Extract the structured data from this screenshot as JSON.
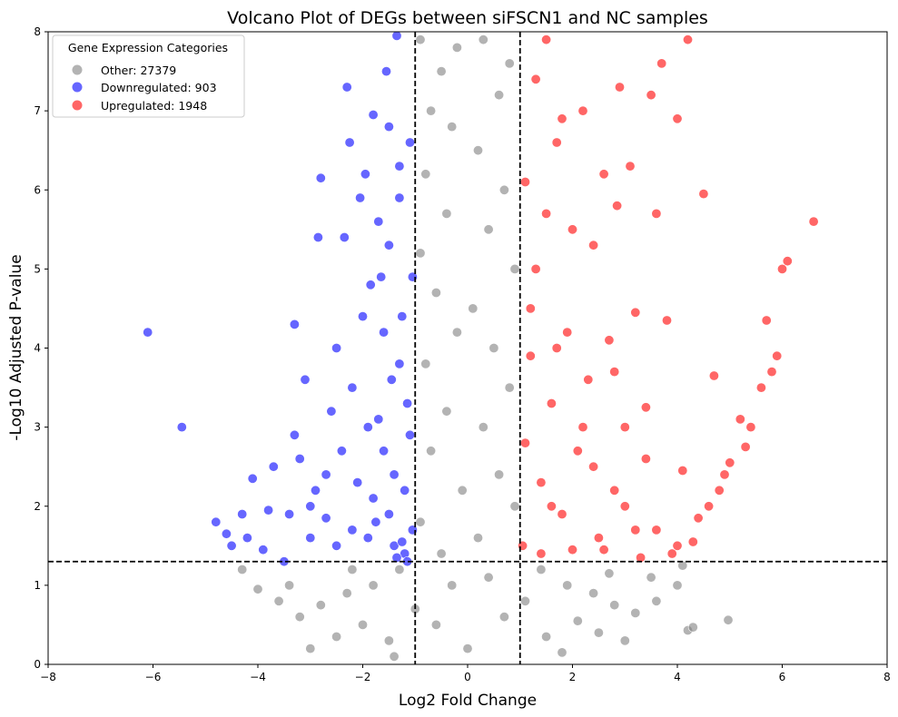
{
  "chart_data": {
    "type": "scatter",
    "title": "Volcano Plot of DEGs between siFSCN1 and NC samples",
    "xlabel": "Log2 Fold Change",
    "ylabel": "-Log10 Adjusted P-value",
    "xlim": [
      -8,
      8
    ],
    "ylim": [
      0,
      8
    ],
    "xticks": [
      -8,
      -6,
      -4,
      -2,
      0,
      2,
      4,
      6,
      8
    ],
    "yticks": [
      0,
      1,
      2,
      3,
      4,
      5,
      6,
      7,
      8
    ],
    "grid": false,
    "legend": {
      "title": "Gene Expression Categories",
      "placement": "top-left",
      "entries": [
        "Other: 27379",
        "Downregulated: 903",
        "Upregulated: 1948"
      ]
    },
    "thresholds": {
      "vertical": [
        -1,
        1
      ],
      "horizontal": 1.3
    },
    "series": [
      {
        "name": "Other: 27379",
        "color": "#808080",
        "points_note": "dense band",
        "points": [
          [
            -0.9,
            7.9
          ],
          [
            -0.5,
            7.5
          ],
          [
            -0.2,
            7.8
          ],
          [
            0.3,
            7.9
          ],
          [
            0.8,
            7.6
          ],
          [
            -0.7,
            7.0
          ],
          [
            0.6,
            7.2
          ],
          [
            -0.3,
            6.8
          ],
          [
            0.2,
            6.5
          ],
          [
            -0.8,
            6.2
          ],
          [
            0.7,
            6.0
          ],
          [
            -0.4,
            5.7
          ],
          [
            0.4,
            5.5
          ],
          [
            -0.9,
            5.2
          ],
          [
            0.9,
            5.0
          ],
          [
            -0.6,
            4.7
          ],
          [
            0.1,
            4.5
          ],
          [
            -0.2,
            4.2
          ],
          [
            0.5,
            4.0
          ],
          [
            -0.8,
            3.8
          ],
          [
            0.8,
            3.5
          ],
          [
            -0.4,
            3.2
          ],
          [
            0.3,
            3.0
          ],
          [
            -0.7,
            2.7
          ],
          [
            0.6,
            2.4
          ],
          [
            -0.1,
            2.2
          ],
          [
            0.9,
            2.0
          ],
          [
            -0.9,
            1.8
          ],
          [
            0.2,
            1.6
          ],
          [
            -0.5,
            1.4
          ],
          [
            -1.3,
            1.2
          ],
          [
            1.4,
            1.2
          ],
          [
            -1.8,
            1.0
          ],
          [
            1.9,
            1.0
          ],
          [
            -2.3,
            0.9
          ],
          [
            2.4,
            0.9
          ],
          [
            -2.8,
            0.75
          ],
          [
            2.8,
            0.75
          ],
          [
            -3.2,
            0.6
          ],
          [
            3.2,
            0.65
          ],
          [
            -3.6,
            0.8
          ],
          [
            3.6,
            0.8
          ],
          [
            -4.0,
            0.95
          ],
          [
            4.0,
            1.0
          ],
          [
            -4.3,
            1.2
          ],
          [
            4.1,
            1.25
          ],
          [
            -2.0,
            0.5
          ],
          [
            2.1,
            0.55
          ],
          [
            -1.5,
            0.3
          ],
          [
            1.5,
            0.35
          ],
          [
            -1.0,
            0.7
          ],
          [
            1.1,
            0.8
          ],
          [
            0.0,
            0.2
          ],
          [
            -0.6,
            0.5
          ],
          [
            0.7,
            0.6
          ],
          [
            -2.5,
            0.35
          ],
          [
            2.5,
            0.4
          ],
          [
            3.0,
            0.3
          ],
          [
            -3.0,
            0.2
          ],
          [
            4.2,
            0.43
          ],
          [
            4.3,
            0.47
          ],
          [
            4.97,
            0.56
          ],
          [
            -1.4,
            0.1
          ],
          [
            1.8,
            0.15
          ],
          [
            -0.3,
            1.0
          ],
          [
            0.4,
            1.1
          ],
          [
            -3.4,
            1.0
          ],
          [
            3.5,
            1.1
          ],
          [
            -2.2,
            1.2
          ],
          [
            2.7,
            1.15
          ]
        ]
      },
      {
        "name": "Downregulated: 903",
        "color": "#0000ff",
        "points": [
          [
            -6.1,
            4.2
          ],
          [
            -5.45,
            3.0
          ],
          [
            -4.8,
            1.8
          ],
          [
            -4.6,
            1.65
          ],
          [
            -4.5,
            1.5
          ],
          [
            -4.3,
            1.9
          ],
          [
            -4.2,
            1.6
          ],
          [
            -4.1,
            2.35
          ],
          [
            -3.9,
            1.45
          ],
          [
            -3.8,
            1.95
          ],
          [
            -3.7,
            2.5
          ],
          [
            -3.5,
            1.3
          ],
          [
            -3.4,
            1.9
          ],
          [
            -3.3,
            2.9
          ],
          [
            -3.3,
            4.3
          ],
          [
            -3.2,
            2.6
          ],
          [
            -3.0,
            1.6
          ],
          [
            -2.9,
            2.2
          ],
          [
            -2.85,
            5.4
          ],
          [
            -2.8,
            6.15
          ],
          [
            -2.7,
            1.85
          ],
          [
            -2.6,
            3.2
          ],
          [
            -2.5,
            4.0
          ],
          [
            -2.4,
            2.7
          ],
          [
            -2.35,
            5.4
          ],
          [
            -2.3,
            7.3
          ],
          [
            -2.25,
            6.6
          ],
          [
            -2.2,
            3.5
          ],
          [
            -2.1,
            2.3
          ],
          [
            -2.05,
            5.9
          ],
          [
            -2.0,
            4.4
          ],
          [
            -1.95,
            6.2
          ],
          [
            -1.9,
            3.0
          ],
          [
            -1.85,
            4.8
          ],
          [
            -1.8,
            6.95
          ],
          [
            -1.75,
            1.8
          ],
          [
            -1.7,
            5.6
          ],
          [
            -1.65,
            4.9
          ],
          [
            -1.6,
            2.7
          ],
          [
            -1.55,
            7.5
          ],
          [
            -1.5,
            6.8
          ],
          [
            -1.45,
            3.6
          ],
          [
            -1.4,
            1.5
          ],
          [
            -1.35,
            7.95
          ],
          [
            -1.3,
            5.9
          ],
          [
            -1.25,
            4.4
          ],
          [
            -1.2,
            2.2
          ],
          [
            -1.15,
            3.3
          ],
          [
            -1.1,
            6.6
          ],
          [
            -1.05,
            1.7
          ],
          [
            -1.05,
            4.9
          ],
          [
            -1.1,
            2.9
          ],
          [
            -1.2,
            1.4
          ],
          [
            -1.3,
            3.8
          ],
          [
            -1.4,
            2.4
          ],
          [
            -1.5,
            1.9
          ],
          [
            -1.6,
            4.2
          ],
          [
            -1.7,
            3.1
          ],
          [
            -1.8,
            2.1
          ],
          [
            -1.9,
            1.6
          ],
          [
            -2.2,
            1.7
          ],
          [
            -2.5,
            1.5
          ],
          [
            -2.7,
            2.4
          ],
          [
            -3.1,
            3.6
          ],
          [
            -3.0,
            2.0
          ],
          [
            -1.15,
            1.3
          ],
          [
            -1.25,
            1.55
          ],
          [
            -1.35,
            1.35
          ],
          [
            -1.5,
            5.3
          ],
          [
            -1.3,
            6.3
          ]
        ]
      },
      {
        "name": "Upregulated: 1948",
        "color": "#ff0000",
        "points": [
          [
            6.6,
            5.6
          ],
          [
            6.1,
            5.1
          ],
          [
            6.0,
            5.0
          ],
          [
            5.9,
            3.9
          ],
          [
            5.8,
            3.7
          ],
          [
            5.7,
            4.35
          ],
          [
            5.6,
            3.5
          ],
          [
            5.4,
            3.0
          ],
          [
            5.3,
            2.75
          ],
          [
            5.2,
            3.1
          ],
          [
            5.0,
            2.55
          ],
          [
            4.9,
            2.4
          ],
          [
            4.8,
            2.2
          ],
          [
            4.7,
            3.65
          ],
          [
            4.6,
            2.0
          ],
          [
            4.5,
            5.95
          ],
          [
            4.4,
            1.85
          ],
          [
            4.3,
            1.55
          ],
          [
            4.2,
            7.9
          ],
          [
            4.1,
            2.45
          ],
          [
            4.0,
            6.9
          ],
          [
            3.9,
            1.4
          ],
          [
            3.8,
            4.35
          ],
          [
            3.7,
            7.6
          ],
          [
            3.6,
            5.7
          ],
          [
            3.5,
            7.2
          ],
          [
            3.4,
            3.25
          ],
          [
            3.3,
            1.35
          ],
          [
            3.2,
            4.45
          ],
          [
            3.1,
            6.3
          ],
          [
            3.0,
            3.0
          ],
          [
            2.9,
            7.3
          ],
          [
            2.85,
            5.8
          ],
          [
            2.8,
            2.2
          ],
          [
            2.7,
            4.1
          ],
          [
            2.6,
            6.2
          ],
          [
            2.5,
            1.6
          ],
          [
            2.4,
            5.3
          ],
          [
            2.3,
            3.6
          ],
          [
            2.2,
            7.0
          ],
          [
            2.1,
            2.7
          ],
          [
            2.0,
            5.5
          ],
          [
            1.9,
            4.2
          ],
          [
            1.8,
            1.9
          ],
          [
            1.7,
            6.6
          ],
          [
            1.6,
            3.3
          ],
          [
            1.5,
            7.9
          ],
          [
            1.4,
            2.3
          ],
          [
            1.3,
            5.0
          ],
          [
            1.2,
            3.9
          ],
          [
            1.1,
            6.1
          ],
          [
            1.05,
            1.5
          ],
          [
            1.1,
            2.8
          ],
          [
            1.2,
            4.5
          ],
          [
            1.3,
            7.4
          ],
          [
            1.4,
            1.4
          ],
          [
            1.5,
            5.7
          ],
          [
            1.6,
            2.0
          ],
          [
            1.7,
            4.0
          ],
          [
            1.8,
            6.9
          ],
          [
            2.0,
            1.45
          ],
          [
            2.2,
            3.0
          ],
          [
            2.4,
            2.5
          ],
          [
            2.6,
            1.45
          ],
          [
            2.8,
            3.7
          ],
          [
            3.0,
            2.0
          ],
          [
            3.2,
            1.7
          ],
          [
            3.4,
            2.6
          ],
          [
            3.6,
            1.7
          ],
          [
            4.0,
            1.5
          ]
        ]
      }
    ]
  }
}
